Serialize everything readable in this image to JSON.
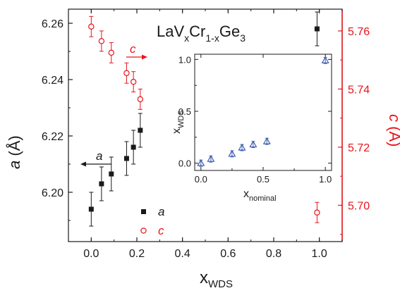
{
  "chart_data": [
    {
      "type": "scatter",
      "title": {
        "main": "LaV",
        "x1": "x",
        "mid": "Cr",
        "x2": "1-x",
        "tail": "Ge",
        "sub3": "3"
      },
      "xlabel": {
        "main": "x",
        "sub": "WDS"
      },
      "ylabel_left": {
        "main": "a",
        "unit": " (Å)"
      },
      "ylabel_right": {
        "main": "c",
        "unit": " (Å)"
      },
      "xlim": [
        -0.1,
        1.1
      ],
      "ylim_left": [
        6.1825,
        6.265
      ],
      "ylim_right": [
        5.6875,
        5.7675
      ],
      "x_ticks": [
        "0.0",
        "0.2",
        "0.4",
        "0.6",
        "0.8",
        "1.0"
      ],
      "y_left_ticks": [
        "6.20",
        "6.22",
        "6.24",
        "6.26"
      ],
      "y_right_ticks": [
        "5.70",
        "5.72",
        "5.74",
        "5.76"
      ],
      "grid": false,
      "legend": {
        "position": "bottom-center",
        "entries": [
          "a",
          "c"
        ]
      },
      "arrow_labels": [
        "a",
        "c"
      ],
      "colors": {
        "a": "#1a1a1a",
        "c": "#e8141b",
        "axis_right": "#e8141b"
      },
      "series": [
        {
          "name": "a",
          "axis": "left",
          "marker": "filled-square",
          "x": [
            0.0,
            0.045,
            0.088,
            0.155,
            0.185,
            0.215,
            0.99
          ],
          "y": [
            6.194,
            6.203,
            6.2065,
            6.212,
            6.216,
            6.222,
            6.258
          ],
          "err": [
            0.006,
            0.006,
            0.006,
            0.006,
            0.006,
            0.006,
            0.006
          ]
        },
        {
          "name": "c",
          "axis": "right",
          "marker": "open-circle",
          "x": [
            0.0,
            0.045,
            0.088,
            0.155,
            0.185,
            0.215,
            0.99
          ],
          "y": [
            5.7615,
            5.7565,
            5.7525,
            5.7455,
            5.7425,
            5.7365,
            5.6975
          ],
          "err": [
            0.0035,
            0.0035,
            0.0035,
            0.0035,
            0.0035,
            0.0035,
            0.0035
          ]
        }
      ]
    },
    {
      "type": "scatter",
      "xlabel": {
        "main": "x",
        "sub": "nominal"
      },
      "ylabel": {
        "main": "x",
        "sub": "WDS"
      },
      "xlim": [
        -0.05,
        1.05
      ],
      "ylim": [
        -0.07,
        1.05
      ],
      "x_ticks": [
        "0.0",
        "0.5",
        "1.0"
      ],
      "y_ticks": [
        "0.0",
        "0.5",
        "1.0"
      ],
      "marker": "open-triangle",
      "colors": {
        "marker": "#3f5fb0"
      },
      "x": [
        0.0,
        0.08,
        0.25,
        0.33,
        0.42,
        0.53,
        1.0
      ],
      "y": [
        0.0,
        0.04,
        0.09,
        0.15,
        0.18,
        0.21,
        0.99
      ],
      "err": [
        0.03,
        0.03,
        0.03,
        0.03,
        0.03,
        0.03,
        0.03
      ]
    }
  ]
}
